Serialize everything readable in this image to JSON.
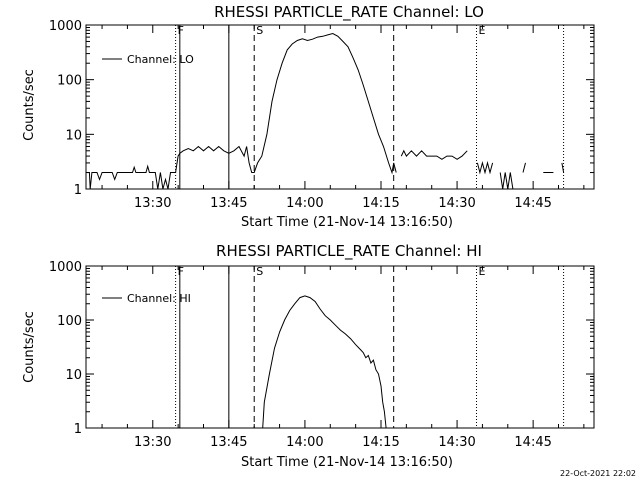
{
  "chart_data": [
    {
      "type": "line",
      "title": "RHESSI PARTICLE_RATE Channel: LO",
      "xlabel": "Start Time (21-Nov-14 13:16:50)",
      "ylabel": "Counts/sec",
      "y_scale": "log",
      "xlim": [
        "13:16:50",
        "14:57:00"
      ],
      "ylim": [
        1,
        1000
      ],
      "x_ticks": [
        "13:30",
        "13:45",
        "14:00",
        "14:15",
        "14:30",
        "14:45"
      ],
      "y_ticks": [
        "1",
        "10",
        "100",
        "1000"
      ],
      "legend": {
        "label": "Channel: LO",
        "placement": "top-left"
      },
      "markers": [
        {
          "time": "13:34:30",
          "label": "F",
          "style": "dotted"
        },
        {
          "time": "13:35:20",
          "label": "",
          "style": "solid"
        },
        {
          "time": "13:45:00",
          "label": "",
          "style": "solid"
        },
        {
          "time": "13:50:00",
          "label": "S",
          "style": "dashed"
        },
        {
          "time": "14:17:30",
          "label": "",
          "style": "dashed"
        },
        {
          "time": "14:33:50",
          "label": "E",
          "style": "dotted"
        },
        {
          "time": "14:51:00",
          "label": "",
          "style": "dotted"
        }
      ],
      "series": [
        {
          "segments": [
            [
              [
                "13:16:50",
                2
              ],
              [
                "13:17:30",
                2
              ],
              [
                "13:17:40",
                1
              ],
              [
                "13:18:00",
                2
              ],
              [
                "13:19:00",
                2
              ],
              [
                "13:19:30",
                1.5
              ],
              [
                "13:20:00",
                2
              ],
              [
                "13:22:00",
                2
              ],
              [
                "13:22:30",
                1.5
              ],
              [
                "13:23:00",
                2
              ],
              [
                "13:26:00",
                2
              ],
              [
                "13:26:20",
                2.5
              ],
              [
                "13:26:40",
                2
              ],
              [
                "13:28:40",
                2
              ],
              [
                "13:29:00",
                2.6
              ],
              [
                "13:29:20",
                2
              ],
              [
                "13:30:30",
                2
              ],
              [
                "13:31:00",
                1
              ],
              [
                "13:31:30",
                2
              ],
              [
                "13:32:00",
                1
              ],
              [
                "13:32:30",
                1.5
              ],
              [
                "13:33:00",
                1
              ],
              [
                "13:33:30",
                2
              ],
              [
                "13:34:00",
                2
              ],
              [
                "13:34:30",
                2
              ],
              [
                "13:35:00",
                4
              ],
              [
                "13:35:20",
                4.5
              ],
              [
                "13:36:00",
                5
              ],
              [
                "13:37:00",
                5.5
              ],
              [
                "13:38:00",
                5
              ],
              [
                "13:39:00",
                6
              ],
              [
                "13:40:00",
                5
              ],
              [
                "13:41:00",
                6
              ],
              [
                "13:42:00",
                5
              ],
              [
                "13:43:00",
                6
              ],
              [
                "13:44:00",
                5
              ],
              [
                "13:45:00",
                4.5
              ],
              [
                "13:46:00",
                5
              ],
              [
                "13:47:00",
                6
              ],
              [
                "13:48:00",
                4
              ],
              [
                "13:48:30",
                6
              ],
              [
                "13:49:00",
                3
              ],
              [
                "13:49:30",
                2
              ],
              [
                "13:50:00",
                2
              ],
              [
                "13:50:40",
                3
              ],
              [
                "13:51:30",
                4
              ],
              [
                "13:52:30",
                10
              ],
              [
                "13:53:30",
                40
              ],
              [
                "13:54:30",
                100
              ],
              [
                "13:55:30",
                200
              ],
              [
                "13:56:30",
                350
              ],
              [
                "13:57:30",
                450
              ],
              [
                "13:58:30",
                520
              ],
              [
                "13:59:30",
                560
              ],
              [
                "14:00:30",
                520
              ],
              [
                "14:01:30",
                550
              ],
              [
                "14:02:30",
                600
              ],
              [
                "14:03:30",
                620
              ],
              [
                "14:04:30",
                660
              ],
              [
                "14:05:30",
                700
              ],
              [
                "14:06:30",
                620
              ],
              [
                "14:07:30",
                500
              ],
              [
                "14:08:30",
                400
              ],
              [
                "14:09:30",
                250
              ],
              [
                "14:10:30",
                150
              ],
              [
                "14:11:30",
                80
              ],
              [
                "14:12:30",
                40
              ],
              [
                "14:13:30",
                20
              ],
              [
                "14:14:30",
                10
              ],
              [
                "14:15:30",
                6
              ],
              [
                "14:16:30",
                3
              ],
              [
                "14:17:10",
                2
              ],
              [
                "14:17:30",
                3
              ],
              [
                "14:18:00",
                2
              ]
            ],
            [
              [
                "14:19:00",
                4
              ],
              [
                "14:19:30",
                5
              ],
              [
                "14:20:00",
                4
              ],
              [
                "14:21:00",
                5
              ],
              [
                "14:22:00",
                4
              ],
              [
                "14:23:00",
                5
              ],
              [
                "14:24:00",
                4
              ],
              [
                "14:25:00",
                4
              ],
              [
                "14:26:00",
                4
              ],
              [
                "14:27:00",
                3.5
              ],
              [
                "14:28:00",
                4
              ],
              [
                "14:29:00",
                4
              ],
              [
                "14:30:00",
                3.5
              ],
              [
                "14:31:00",
                4
              ],
              [
                "14:32:00",
                5
              ]
            ],
            [
              [
                "14:34:00",
                3
              ],
              [
                "14:34:30",
                2
              ],
              [
                "14:35:00",
                3
              ],
              [
                "14:35:30",
                2
              ],
              [
                "14:36:00",
                3
              ],
              [
                "14:36:30",
                2
              ],
              [
                "14:37:00",
                3
              ]
            ],
            [
              [
                "14:38:30",
                2
              ],
              [
                "14:39:00",
                1
              ],
              [
                "14:39:30",
                2
              ],
              [
                "14:40:00",
                1
              ],
              [
                "14:40:30",
                2
              ],
              [
                "14:41:00",
                1
              ]
            ],
            [
              [
                "14:43:00",
                2
              ],
              [
                "14:43:30",
                3
              ]
            ],
            [
              [
                "14:47:00",
                2
              ],
              [
                "14:49:00",
                2
              ]
            ],
            [
              [
                "14:50:40",
                3
              ],
              [
                "14:51:00",
                2
              ]
            ]
          ]
        }
      ]
    },
    {
      "type": "line",
      "title": "RHESSI PARTICLE_RATE Channel: HI",
      "xlabel": "Start Time (21-Nov-14 13:16:50)",
      "ylabel": "Counts/sec",
      "y_scale": "log",
      "xlim": [
        "13:16:50",
        "14:57:00"
      ],
      "ylim": [
        1,
        1000
      ],
      "x_ticks": [
        "13:30",
        "13:45",
        "14:00",
        "14:15",
        "14:30",
        "14:45"
      ],
      "y_ticks": [
        "1",
        "10",
        "100",
        "1000"
      ],
      "legend": {
        "label": "Channel: HI",
        "placement": "top-left"
      },
      "markers": [
        {
          "time": "13:34:30",
          "label": "F",
          "style": "dotted"
        },
        {
          "time": "13:35:20",
          "label": "",
          "style": "solid"
        },
        {
          "time": "13:45:00",
          "label": "",
          "style": "solid"
        },
        {
          "time": "13:50:00",
          "label": "S",
          "style": "dashed"
        },
        {
          "time": "14:17:30",
          "label": "",
          "style": "dashed"
        },
        {
          "time": "14:33:50",
          "label": "E",
          "style": "dotted"
        },
        {
          "time": "14:51:00",
          "label": "",
          "style": "dotted"
        }
      ],
      "series": [
        {
          "segments": [
            [
              [
                "13:51:40",
                1
              ],
              [
                "13:52:00",
                3
              ],
              [
                "13:53:00",
                10
              ],
              [
                "13:54:00",
                30
              ],
              [
                "13:55:00",
                60
              ],
              [
                "13:56:00",
                100
              ],
              [
                "13:57:00",
                150
              ],
              [
                "13:58:00",
                200
              ],
              [
                "13:59:00",
                260
              ],
              [
                "14:00:00",
                280
              ],
              [
                "14:01:00",
                260
              ],
              [
                "14:02:00",
                220
              ],
              [
                "14:03:00",
                160
              ],
              [
                "14:04:00",
                120
              ],
              [
                "14:05:00",
                100
              ],
              [
                "14:06:00",
                80
              ],
              [
                "14:07:00",
                65
              ],
              [
                "14:08:00",
                55
              ],
              [
                "14:09:00",
                45
              ],
              [
                "14:10:00",
                35
              ],
              [
                "14:11:00",
                28
              ],
              [
                "14:11:30",
                25
              ],
              [
                "14:12:00",
                20
              ],
              [
                "14:12:30",
                22
              ],
              [
                "14:13:00",
                16
              ],
              [
                "14:13:30",
                18
              ],
              [
                "14:14:00",
                12
              ],
              [
                "14:14:30",
                10
              ],
              [
                "14:15:00",
                6
              ],
              [
                "14:15:20",
                3
              ],
              [
                "14:15:40",
                2
              ],
              [
                "14:16:00",
                1
              ]
            ]
          ]
        }
      ]
    }
  ],
  "footer": {
    "stamp": "22-Oct-2021 22:02"
  }
}
